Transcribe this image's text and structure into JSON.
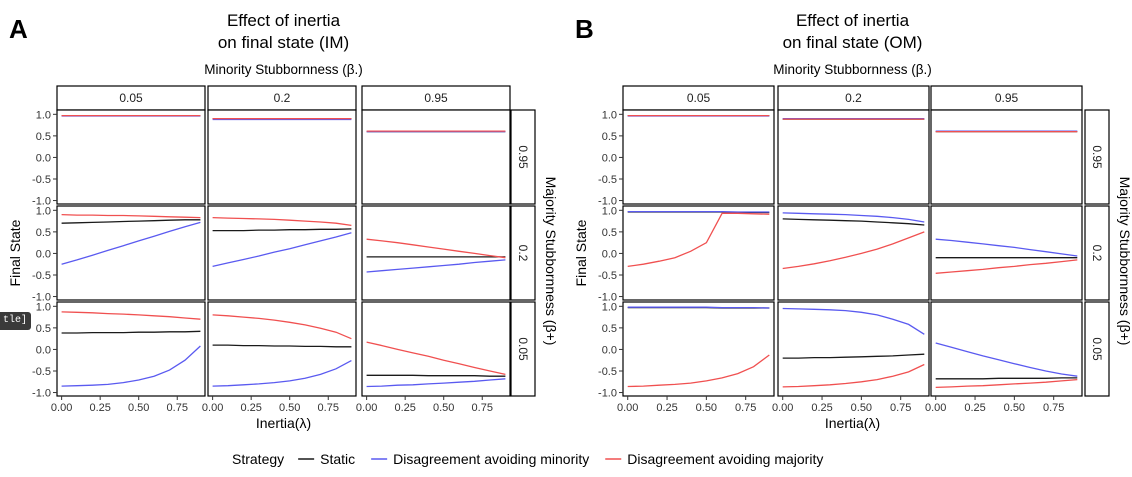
{
  "tooltip_fragment": "tle]",
  "legend": {
    "title": "Strategy",
    "items": [
      {
        "label": "Static",
        "color": "#1a1a1a"
      },
      {
        "label": "Disagreement avoiding minority",
        "color": "#5a5af0"
      },
      {
        "label": "Disagreement avoiding majority",
        "color": "#f05050"
      }
    ]
  },
  "chart_data": [
    {
      "type": "line",
      "panel_letter": "A",
      "title_line1": "Effect of inertia",
      "title_line2": "on final state (IM)",
      "col_strip_title": "Minority Stubbornness (β.)",
      "row_strip_title": "Majority Stubbornness (β+)",
      "xlabel": "Inertia(λ)",
      "ylabel": "Final State",
      "col_labels": [
        "0.05",
        "0.2",
        "0.95"
      ],
      "row_labels": [
        "0.95",
        "0.2",
        "0.05"
      ],
      "xlim": [
        -0.03,
        0.93
      ],
      "ylim": [
        -1.08,
        1.1
      ],
      "x_ticks": [
        "0.00",
        "0.25",
        "0.50",
        "0.75"
      ],
      "y_ticks": [
        "1.0",
        "0.5",
        "0.0",
        "-0.5",
        "-1.0"
      ],
      "x": [
        0,
        0.1,
        0.2,
        0.3,
        0.4,
        0.5,
        0.6,
        0.7,
        0.8,
        0.9
      ],
      "panels": [
        [
          {
            "static": [
              0.97,
              0.97,
              0.97,
              0.97,
              0.97,
              0.97,
              0.97,
              0.97,
              0.97,
              0.97
            ],
            "minority": [
              0.96,
              0.96,
              0.96,
              0.96,
              0.96,
              0.96,
              0.96,
              0.96,
              0.96,
              0.96
            ],
            "majority": [
              0.97,
              0.97,
              0.97,
              0.97,
              0.97,
              0.97,
              0.97,
              0.97,
              0.97,
              0.97
            ]
          },
          {
            "static": [
              0.9,
              0.9,
              0.9,
              0.9,
              0.9,
              0.9,
              0.9,
              0.9,
              0.9,
              0.9
            ],
            "minority": [
              0.88,
              0.88,
              0.88,
              0.88,
              0.88,
              0.88,
              0.88,
              0.88,
              0.88,
              0.88
            ],
            "majority": [
              0.9,
              0.9,
              0.9,
              0.9,
              0.9,
              0.9,
              0.9,
              0.9,
              0.9,
              0.9
            ]
          },
          {
            "static": [
              0.6,
              0.6,
              0.6,
              0.6,
              0.6,
              0.6,
              0.6,
              0.6,
              0.6,
              0.6
            ],
            "minority": [
              0.6,
              0.6,
              0.6,
              0.6,
              0.6,
              0.6,
              0.6,
              0.6,
              0.6,
              0.6
            ],
            "majority": [
              0.61,
              0.61,
              0.61,
              0.61,
              0.61,
              0.61,
              0.61,
              0.61,
              0.61,
              0.61
            ]
          }
        ],
        [
          {
            "static": [
              0.7,
              0.71,
              0.72,
              0.73,
              0.74,
              0.75,
              0.76,
              0.77,
              0.78,
              0.78
            ],
            "minority": [
              -0.25,
              -0.15,
              -0.04,
              0.07,
              0.18,
              0.29,
              0.4,
              0.51,
              0.62,
              0.72
            ],
            "majority": [
              0.9,
              0.89,
              0.89,
              0.88,
              0.88,
              0.87,
              0.86,
              0.85,
              0.84,
              0.83
            ]
          },
          {
            "static": [
              0.53,
              0.53,
              0.53,
              0.54,
              0.54,
              0.55,
              0.55,
              0.56,
              0.56,
              0.57
            ],
            "minority": [
              -0.3,
              -0.22,
              -0.14,
              -0.06,
              0.03,
              0.11,
              0.2,
              0.29,
              0.38,
              0.48
            ],
            "majority": [
              0.83,
              0.82,
              0.81,
              0.8,
              0.79,
              0.77,
              0.75,
              0.73,
              0.7,
              0.65
            ]
          },
          {
            "static": [
              -0.08,
              -0.08,
              -0.08,
              -0.08,
              -0.08,
              -0.08,
              -0.08,
              -0.08,
              -0.08,
              -0.08
            ],
            "minority": [
              -0.43,
              -0.4,
              -0.37,
              -0.34,
              -0.31,
              -0.28,
              -0.25,
              -0.21,
              -0.18,
              -0.15
            ],
            "majority": [
              0.33,
              0.29,
              0.25,
              0.2,
              0.15,
              0.1,
              0.05,
              0.0,
              -0.05,
              -0.1
            ]
          }
        ],
        [
          {
            "static": [
              0.38,
              0.38,
              0.39,
              0.39,
              0.39,
              0.4,
              0.4,
              0.41,
              0.41,
              0.42
            ],
            "minority": [
              -0.85,
              -0.84,
              -0.83,
              -0.81,
              -0.77,
              -0.71,
              -0.62,
              -0.48,
              -0.25,
              0.08
            ],
            "majority": [
              0.87,
              0.86,
              0.85,
              0.83,
              0.82,
              0.8,
              0.78,
              0.76,
              0.73,
              0.7
            ]
          },
          {
            "static": [
              0.1,
              0.1,
              0.09,
              0.09,
              0.08,
              0.08,
              0.07,
              0.07,
              0.06,
              0.06
            ],
            "minority": [
              -0.85,
              -0.84,
              -0.82,
              -0.8,
              -0.77,
              -0.73,
              -0.67,
              -0.58,
              -0.45,
              -0.26
            ],
            "majority": [
              0.8,
              0.78,
              0.75,
              0.72,
              0.68,
              0.63,
              0.57,
              0.49,
              0.4,
              0.25
            ]
          },
          {
            "static": [
              -0.6,
              -0.6,
              -0.6,
              -0.6,
              -0.61,
              -0.61,
              -0.61,
              -0.61,
              -0.62,
              -0.62
            ],
            "minority": [
              -0.86,
              -0.85,
              -0.83,
              -0.82,
              -0.8,
              -0.78,
              -0.76,
              -0.74,
              -0.71,
              -0.68
            ],
            "majority": [
              0.17,
              0.09,
              0.0,
              -0.08,
              -0.16,
              -0.25,
              -0.33,
              -0.42,
              -0.5,
              -0.58
            ]
          }
        ]
      ]
    },
    {
      "type": "line",
      "panel_letter": "B",
      "title_line1": "Effect of inertia",
      "title_line2": "on final state (OM)",
      "col_strip_title": "Minority Stubbornness (β.)",
      "row_strip_title": "Majority Stubbornness (β+)",
      "xlabel": "Inertia(λ)",
      "ylabel": "Final State",
      "col_labels": [
        "0.05",
        "0.2",
        "0.95"
      ],
      "row_labels": [
        "0.95",
        "0.2",
        "0.05"
      ],
      "xlim": [
        -0.03,
        0.93
      ],
      "ylim": [
        -1.08,
        1.1
      ],
      "x_ticks": [
        "0.00",
        "0.25",
        "0.50",
        "0.75"
      ],
      "y_ticks": [
        "1.0",
        "0.5",
        "0.0",
        "-0.5",
        "-1.0"
      ],
      "x": [
        0,
        0.1,
        0.2,
        0.3,
        0.4,
        0.5,
        0.6,
        0.7,
        0.8,
        0.9
      ],
      "panels": [
        [
          {
            "static": [
              0.97,
              0.97,
              0.97,
              0.97,
              0.97,
              0.97,
              0.97,
              0.97,
              0.97,
              0.97
            ],
            "minority": [
              0.96,
              0.96,
              0.96,
              0.96,
              0.96,
              0.96,
              0.96,
              0.96,
              0.96,
              0.96
            ],
            "majority": [
              0.97,
              0.97,
              0.97,
              0.97,
              0.97,
              0.97,
              0.97,
              0.97,
              0.97,
              0.97
            ]
          },
          {
            "static": [
              0.89,
              0.89,
              0.89,
              0.89,
              0.89,
              0.89,
              0.89,
              0.89,
              0.89,
              0.89
            ],
            "minority": [
              0.9,
              0.9,
              0.9,
              0.9,
              0.9,
              0.9,
              0.9,
              0.9,
              0.9,
              0.9
            ],
            "majority": [
              0.89,
              0.89,
              0.89,
              0.89,
              0.89,
              0.89,
              0.89,
              0.89,
              0.89,
              0.89
            ]
          },
          {
            "static": [
              0.6,
              0.6,
              0.6,
              0.6,
              0.6,
              0.6,
              0.6,
              0.6,
              0.6,
              0.6
            ],
            "minority": [
              0.61,
              0.61,
              0.61,
              0.61,
              0.61,
              0.61,
              0.61,
              0.61,
              0.61,
              0.61
            ],
            "majority": [
              0.6,
              0.6,
              0.6,
              0.6,
              0.6,
              0.6,
              0.6,
              0.6,
              0.6,
              0.6
            ]
          }
        ],
        [
          {
            "static": [
              0.96,
              0.96,
              0.96,
              0.96,
              0.96,
              0.96,
              0.96,
              0.95,
              0.95,
              0.95
            ],
            "minority": [
              0.97,
              0.97,
              0.97,
              0.97,
              0.97,
              0.97,
              0.97,
              0.96,
              0.96,
              0.96
            ],
            "majority": [
              -0.3,
              -0.25,
              -0.18,
              -0.1,
              0.05,
              0.25,
              0.93,
              0.93,
              0.92,
              0.91
            ]
          },
          {
            "static": [
              0.8,
              0.79,
              0.78,
              0.77,
              0.76,
              0.75,
              0.73,
              0.71,
              0.69,
              0.66
            ],
            "minority": [
              0.94,
              0.93,
              0.92,
              0.91,
              0.9,
              0.88,
              0.86,
              0.83,
              0.79,
              0.73
            ],
            "majority": [
              -0.35,
              -0.3,
              -0.24,
              -0.17,
              -0.09,
              0.0,
              0.1,
              0.22,
              0.36,
              0.5
            ]
          },
          {
            "static": [
              -0.1,
              -0.1,
              -0.1,
              -0.1,
              -0.1,
              -0.1,
              -0.1,
              -0.1,
              -0.1,
              -0.1
            ],
            "minority": [
              0.33,
              0.3,
              0.26,
              0.22,
              0.18,
              0.14,
              0.09,
              0.04,
              -0.01,
              -0.06
            ],
            "majority": [
              -0.46,
              -0.43,
              -0.4,
              -0.37,
              -0.33,
              -0.3,
              -0.26,
              -0.23,
              -0.19,
              -0.15
            ]
          }
        ],
        [
          {
            "static": [
              0.97,
              0.97,
              0.97,
              0.97,
              0.97,
              0.97,
              0.96,
              0.96,
              0.96,
              0.96
            ],
            "minority": [
              0.98,
              0.98,
              0.98,
              0.98,
              0.98,
              0.98,
              0.97,
              0.97,
              0.97,
              0.96
            ],
            "majority": [
              -0.86,
              -0.85,
              -0.83,
              -0.81,
              -0.78,
              -0.73,
              -0.66,
              -0.56,
              -0.4,
              -0.13
            ]
          },
          {
            "static": [
              -0.2,
              -0.2,
              -0.19,
              -0.19,
              -0.18,
              -0.17,
              -0.16,
              -0.15,
              -0.13,
              -0.11
            ],
            "minority": [
              0.95,
              0.94,
              0.93,
              0.92,
              0.9,
              0.86,
              0.8,
              0.7,
              0.58,
              0.35
            ],
            "majority": [
              -0.87,
              -0.86,
              -0.84,
              -0.82,
              -0.79,
              -0.75,
              -0.7,
              -0.62,
              -0.52,
              -0.35
            ]
          },
          {
            "static": [
              -0.68,
              -0.68,
              -0.68,
              -0.68,
              -0.67,
              -0.67,
              -0.67,
              -0.67,
              -0.66,
              -0.66
            ],
            "minority": [
              0.15,
              0.05,
              -0.05,
              -0.15,
              -0.24,
              -0.33,
              -0.42,
              -0.5,
              -0.57,
              -0.62
            ],
            "majority": [
              -0.88,
              -0.87,
              -0.85,
              -0.84,
              -0.82,
              -0.8,
              -0.78,
              -0.76,
              -0.73,
              -0.7
            ]
          }
        ]
      ]
    }
  ]
}
